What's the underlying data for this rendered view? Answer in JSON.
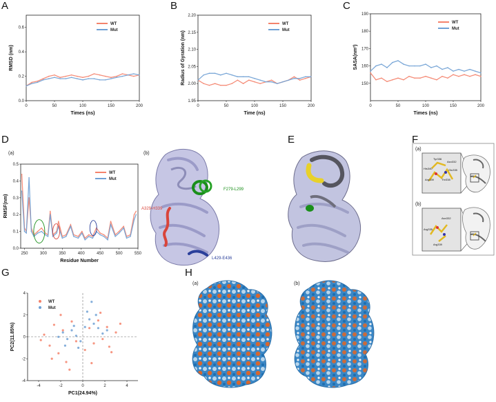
{
  "panels": {
    "A": "A",
    "B": "B",
    "C": "C",
    "D": "D",
    "E": "E",
    "F": "F",
    "G": "G",
    "H": "H"
  },
  "colors": {
    "wt": "#f4826b",
    "mut": "#6fa0d4"
  },
  "legend": {
    "wt": "WT",
    "mut": "Mut"
  },
  "d_sublabels": {
    "a": "(a)",
    "b": "(b)"
  },
  "f_sublabels": {
    "a": "(a)",
    "b": "(b)"
  },
  "h_sublabels": {
    "a": "(a)",
    "b": "(b)"
  },
  "structure_labels": {
    "region1": "A329-H339",
    "region2": "F279-L299",
    "region3": "L429-E436"
  },
  "region_colors": {
    "region1": "#d9453b",
    "region2": "#1a8f1a",
    "region3": "#2a3f9a"
  },
  "f_residues_a": [
    "Tyr336",
    "Asn332",
    "His340",
    "Glu335",
    "Arg339",
    "Thr338"
  ],
  "f_residues_b": [
    "Asn332",
    "Arg335",
    "Arg339"
  ],
  "chart_data": [
    {
      "id": "A",
      "type": "line",
      "title": "",
      "xlabel": "Times (ns)",
      "ylabel": "RMSD (nm)",
      "xlim": [
        0,
        200
      ],
      "ylim": [
        0.0,
        0.7
      ],
      "xticks": [
        0,
        50,
        100,
        150,
        200
      ],
      "yticks": [
        0.0,
        0.2,
        0.4,
        0.6
      ],
      "ytick_labels": [
        "0.0",
        "0.2",
        "0.4",
        "0.6"
      ],
      "legend_position": "top-right",
      "series": [
        {
          "name": "WT",
          "x": [
            0,
            10,
            20,
            30,
            40,
            50,
            60,
            70,
            80,
            90,
            100,
            110,
            120,
            130,
            140,
            150,
            160,
            170,
            180,
            190,
            200
          ],
          "y": [
            0.12,
            0.15,
            0.16,
            0.18,
            0.2,
            0.21,
            0.19,
            0.2,
            0.21,
            0.2,
            0.19,
            0.2,
            0.22,
            0.21,
            0.2,
            0.19,
            0.2,
            0.22,
            0.21,
            0.2,
            0.21
          ]
        },
        {
          "name": "Mut",
          "x": [
            0,
            10,
            20,
            30,
            40,
            50,
            60,
            70,
            80,
            90,
            100,
            110,
            120,
            130,
            140,
            150,
            160,
            170,
            180,
            190,
            200
          ],
          "y": [
            0.12,
            0.14,
            0.15,
            0.17,
            0.18,
            0.19,
            0.18,
            0.18,
            0.19,
            0.18,
            0.17,
            0.18,
            0.18,
            0.17,
            0.17,
            0.18,
            0.19,
            0.2,
            0.21,
            0.22,
            0.21
          ]
        }
      ]
    },
    {
      "id": "B",
      "type": "line",
      "title": "",
      "xlabel": "Time (ns)",
      "ylabel": "Radius of Gyration (nm)",
      "xlim": [
        0,
        200
      ],
      "ylim": [
        1.95,
        2.2
      ],
      "xticks": [
        0,
        50,
        100,
        150,
        200
      ],
      "yticks": [
        1.95,
        2.0,
        2.05,
        2.1,
        2.15,
        2.2
      ],
      "ytick_labels": [
        "1.95",
        "2.00",
        "2.05",
        "2.10",
        "2.15",
        "2.20"
      ],
      "legend_position": "top-right",
      "series": [
        {
          "name": "WT",
          "x": [
            0,
            10,
            20,
            30,
            40,
            50,
            60,
            70,
            80,
            90,
            100,
            110,
            120,
            130,
            140,
            150,
            160,
            170,
            180,
            190,
            200
          ],
          "y": [
            2.01,
            2.0,
            1.995,
            2.0,
            1.995,
            1.995,
            2.0,
            2.01,
            2.0,
            2.01,
            2.005,
            2.0,
            2.005,
            2.01,
            2.0,
            2.005,
            2.01,
            2.02,
            2.01,
            2.015,
            2.02
          ]
        },
        {
          "name": "Mut",
          "x": [
            0,
            10,
            20,
            30,
            40,
            50,
            60,
            70,
            80,
            90,
            100,
            110,
            120,
            130,
            140,
            150,
            160,
            170,
            180,
            190,
            200
          ],
          "y": [
            2.01,
            2.025,
            2.03,
            2.03,
            2.025,
            2.03,
            2.025,
            2.02,
            2.02,
            2.02,
            2.015,
            2.01,
            2.005,
            2.005,
            2.0,
            2.005,
            2.01,
            2.015,
            2.015,
            2.02,
            2.02
          ]
        }
      ]
    },
    {
      "id": "C",
      "type": "line",
      "title": "",
      "xlabel": "Times (ns)",
      "ylabel": "SASA(nm²)",
      "xlim": [
        0,
        200
      ],
      "ylim": [
        140,
        190
      ],
      "xticks": [
        0,
        50,
        100,
        150,
        200
      ],
      "yticks": [
        150,
        160,
        170,
        180,
        190
      ],
      "ytick_labels": [
        "150",
        "160",
        "170",
        "180",
        "190"
      ],
      "legend_position": "top-right",
      "series": [
        {
          "name": "WT",
          "x": [
            0,
            10,
            20,
            30,
            40,
            50,
            60,
            70,
            80,
            90,
            100,
            110,
            120,
            130,
            140,
            150,
            160,
            170,
            180,
            190,
            200
          ],
          "y": [
            156,
            152,
            153,
            151,
            152,
            153,
            152,
            154,
            153,
            153,
            154,
            153,
            152,
            154,
            153,
            155,
            154,
            155,
            154,
            155,
            154
          ]
        },
        {
          "name": "Mut",
          "x": [
            0,
            10,
            20,
            30,
            40,
            50,
            60,
            70,
            80,
            90,
            100,
            110,
            120,
            130,
            140,
            150,
            160,
            170,
            180,
            190,
            200
          ],
          "y": [
            157,
            160,
            161,
            159,
            162,
            163,
            161,
            160,
            160,
            160,
            161,
            159,
            160,
            158,
            159,
            157,
            158,
            157,
            158,
            157,
            156
          ]
        }
      ]
    },
    {
      "id": "D(a)",
      "type": "line",
      "title": "",
      "xlabel": "Residue Number",
      "ylabel": "RMSF(nm)",
      "xlim": [
        240,
        550
      ],
      "ylim": [
        0.0,
        0.5
      ],
      "xticks": [
        250,
        300,
        350,
        400,
        450,
        500,
        550
      ],
      "yticks": [
        0.0,
        0.1,
        0.2,
        0.3,
        0.4,
        0.5
      ],
      "ytick_labels": [
        "0.0",
        "0.1",
        "0.2",
        "0.3",
        "0.4",
        "0.5"
      ],
      "legend_position": "top-right",
      "series": [
        {
          "name": "WT",
          "x": [
            243,
            250,
            255,
            262,
            268,
            275,
            285,
            295,
            305,
            312,
            318,
            325,
            335,
            340,
            350,
            360,
            372,
            380,
            392,
            402,
            410,
            420,
            430,
            440,
            450,
            460,
            470,
            478,
            490,
            500,
            512,
            520,
            530,
            540,
            545
          ],
          "y": [
            0.44,
            0.12,
            0.1,
            0.3,
            0.12,
            0.08,
            0.1,
            0.12,
            0.09,
            0.08,
            0.22,
            0.08,
            0.1,
            0.16,
            0.07,
            0.08,
            0.14,
            0.08,
            0.07,
            0.1,
            0.06,
            0.08,
            0.07,
            0.12,
            0.09,
            0.08,
            0.06,
            0.16,
            0.08,
            0.1,
            0.13,
            0.07,
            0.08,
            0.2,
            0.22
          ]
        },
        {
          "name": "Mut",
          "x": [
            243,
            250,
            255,
            262,
            268,
            275,
            285,
            295,
            305,
            312,
            318,
            325,
            335,
            340,
            350,
            360,
            372,
            380,
            392,
            402,
            410,
            420,
            430,
            440,
            450,
            460,
            470,
            478,
            490,
            500,
            512,
            520,
            530,
            540,
            545
          ],
          "y": [
            0.34,
            0.1,
            0.09,
            0.42,
            0.1,
            0.07,
            0.09,
            0.1,
            0.08,
            0.07,
            0.2,
            0.07,
            0.09,
            0.13,
            0.06,
            0.07,
            0.13,
            0.07,
            0.06,
            0.09,
            0.05,
            0.07,
            0.06,
            0.1,
            0.08,
            0.07,
            0.05,
            0.14,
            0.07,
            0.09,
            0.12,
            0.06,
            0.07,
            0.17,
            0.2
          ]
        }
      ]
    },
    {
      "id": "G",
      "type": "scatter",
      "title": "",
      "xlabel": "PC1(24.94%)",
      "ylabel": "PC2(11.85%)",
      "xlim": [
        -5,
        5
      ],
      "ylim": [
        -4,
        4
      ],
      "xticks": [
        -4,
        -2,
        0,
        2,
        4
      ],
      "yticks": [
        -4,
        -2,
        0,
        2,
        4
      ],
      "ytick_labels": [
        "-4",
        "-2",
        "0",
        "2",
        "4"
      ],
      "legend_position": "top-left",
      "series": [
        {
          "name": "WT",
          "x": [
            -3.5,
            -3,
            -2.6,
            -2.2,
            -1.8,
            -1.5,
            -1,
            -0.6,
            0.2,
            0.6,
            1,
            1.4,
            1.8,
            2.2,
            2.6,
            3,
            -2.8,
            -2,
            -1.2,
            0.8,
            1.6,
            2.4,
            -3.8,
            3.4
          ],
          "y": [
            0.2,
            -0.8,
            1.1,
            -1.5,
            0.6,
            -2.3,
            1.4,
            -0.4,
            -1.2,
            0.8,
            -0.6,
            1.5,
            -0.2,
            0.9,
            -1.4,
            0.4,
            -2.0,
            2.0,
            -3.0,
            -2.4,
            2.2,
            -0.9,
            -0.3,
            1.2
          ]
        },
        {
          "name": "Mut",
          "x": [
            -2.2,
            -1.8,
            -1.4,
            -1,
            -0.6,
            -0.2,
            0.2,
            0.6,
            1,
            1.4,
            1.8,
            -1.6,
            -0.8,
            0.4,
            1.2,
            2.2,
            -0.4,
            0.8
          ],
          "y": [
            0.0,
            0.4,
            -0.2,
            0.6,
            0.1,
            -0.4,
            0.9,
            1.6,
            1.2,
            0.8,
            0.3,
            -0.8,
            1.0,
            2.3,
            2.0,
            0.6,
            -1.0,
            3.2
          ]
        }
      ]
    }
  ]
}
